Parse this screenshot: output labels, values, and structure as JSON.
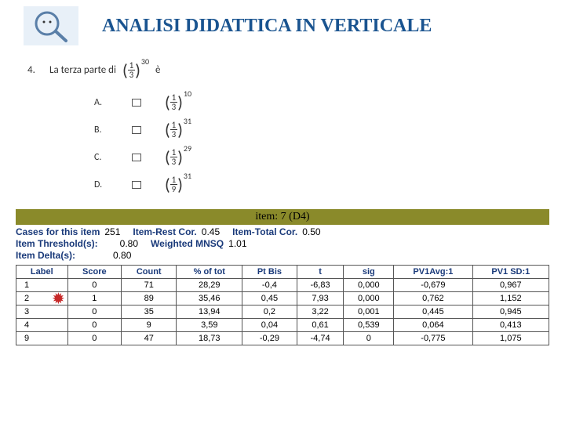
{
  "title": "ANALISI DIDATTICA IN VERTICALE",
  "question": {
    "number": "4.",
    "prefix": "La terza parte di",
    "base_num": "1",
    "base_den": "3",
    "base_exp": "30",
    "suffix": "è"
  },
  "options": [
    {
      "label": "A.",
      "num": "1",
      "den": "3",
      "exp": "10"
    },
    {
      "label": "B.",
      "num": "1",
      "den": "3",
      "exp": "31"
    },
    {
      "label": "C.",
      "num": "1",
      "den": "3",
      "exp": "29"
    },
    {
      "label": "D.",
      "num": "1",
      "den": "9",
      "exp": "31"
    }
  ],
  "banner": "item: 7 (D4)",
  "stats": {
    "cases_lbl": "Cases for this item",
    "cases_val": "251",
    "irc_lbl": "Item-Rest Cor.",
    "irc_val": "0.45",
    "itc_lbl": "Item-Total Cor.",
    "itc_val": "0.50",
    "thr_lbl": "Item Threshold(s):",
    "thr_val": "0.80",
    "mnsq_lbl": "Weighted MNSQ",
    "mnsq_val": "1.01",
    "delta_lbl": "Item Delta(s):",
    "delta_val": "0.80"
  },
  "table": {
    "headers": [
      "Label",
      "Score",
      "Count",
      "% of tot",
      "Pt Bis",
      "t",
      "sig",
      "PV1Avg:1",
      "PV1 SD:1"
    ],
    "rows": [
      {
        "cells": [
          "1",
          "0",
          "71",
          "28,29",
          "-0,4",
          "-6,83",
          "0,000",
          "-0,679",
          "0,967"
        ],
        "star": false
      },
      {
        "cells": [
          "2",
          "1",
          "89",
          "35,46",
          "0,45",
          "7,93",
          "0,000",
          "0,762",
          "1,152"
        ],
        "star": true
      },
      {
        "cells": [
          "3",
          "0",
          "35",
          "13,94",
          "0,2",
          "3,22",
          "0,001",
          "0,445",
          "0,945"
        ],
        "star": false
      },
      {
        "cells": [
          "4",
          "0",
          "9",
          "3,59",
          "0,04",
          "0,61",
          "0,539",
          "0,064",
          "0,413"
        ],
        "star": false
      },
      {
        "cells": [
          "9",
          "0",
          "47",
          "18,73",
          "-0,29",
          "-4,74",
          "0",
          "-0,775",
          "1,075"
        ],
        "star": false
      }
    ]
  },
  "colors": {
    "title": "#1a5490",
    "banner_bg": "#8a8a2a",
    "stat_label": "#1a3a7a",
    "star": "#c62828"
  }
}
